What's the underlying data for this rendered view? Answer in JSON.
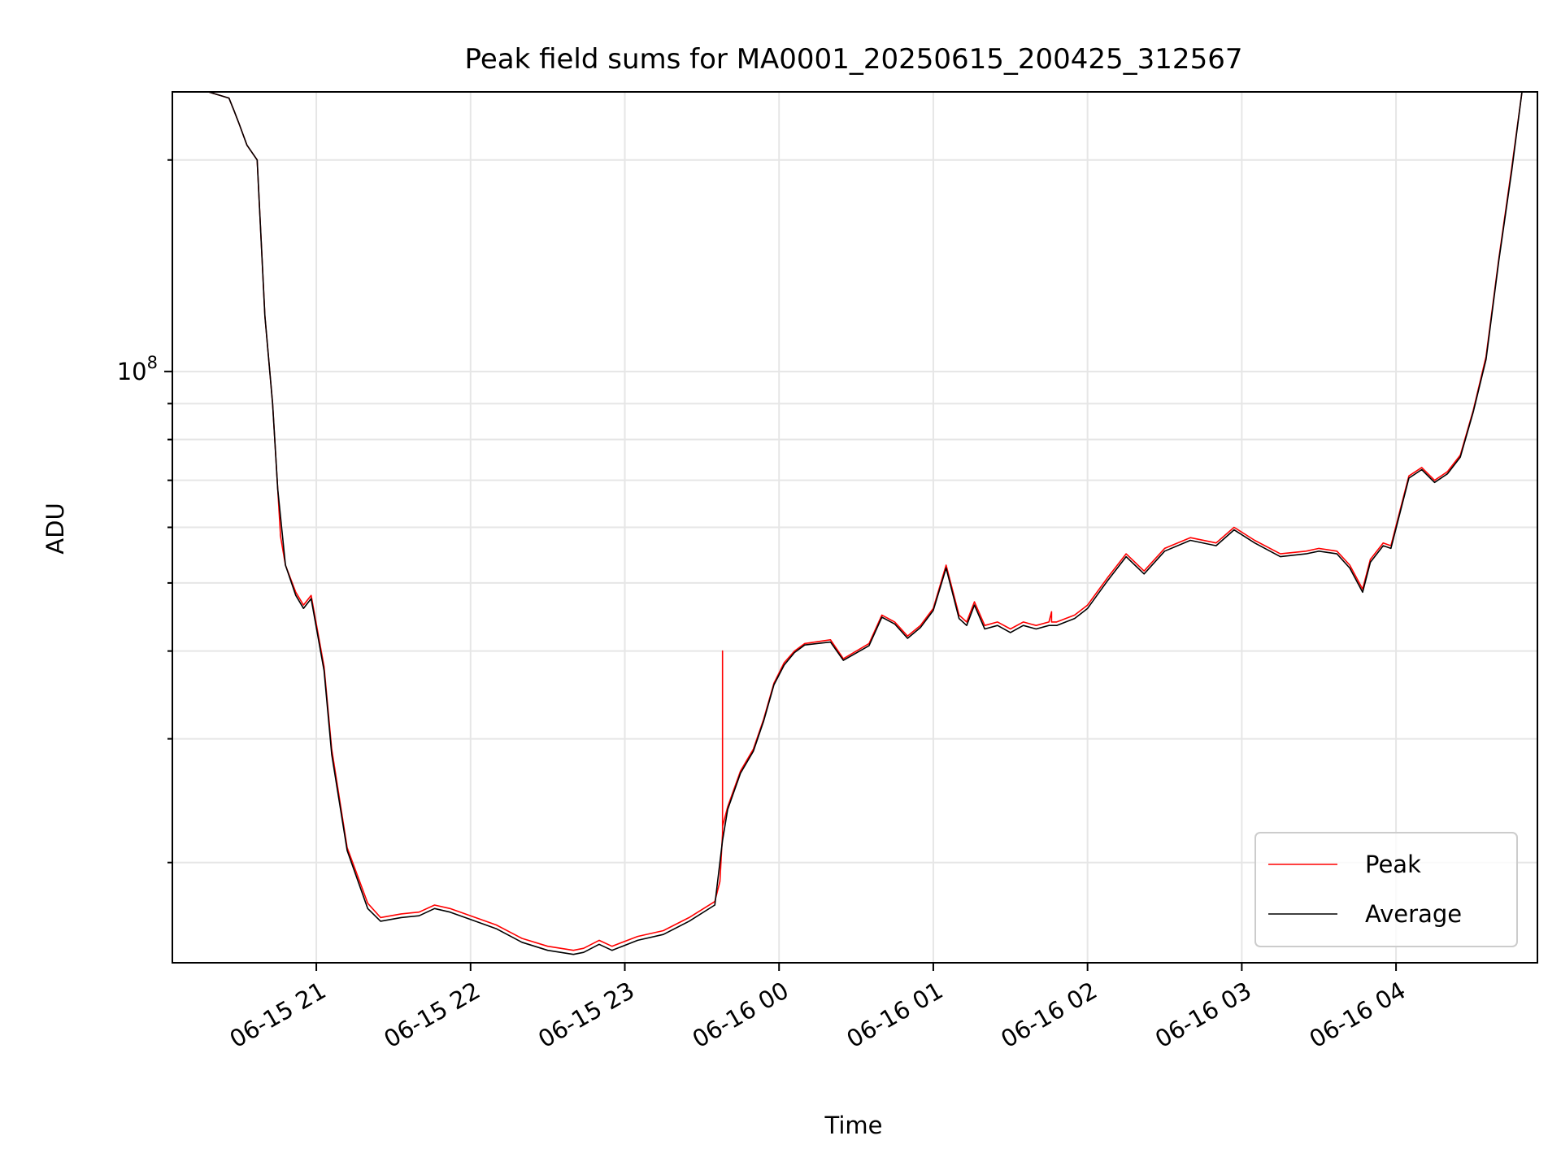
{
  "chart_data": {
    "type": "line",
    "title": "Peak field sums for MA0001_20250615_200425_312567",
    "xlabel": "Time",
    "ylabel": "ADU",
    "yscale": "log",
    "grid": true,
    "legend_position": "lower right",
    "xlim": [
      "2025-06-15 20:04",
      "2025-06-16 04:55"
    ],
    "ylim": [
      14400000,
      250000000
    ],
    "x_ticks": [
      {
        "value": "2025-06-15 21:00",
        "label": "06-15 21"
      },
      {
        "value": "2025-06-15 22:00",
        "label": "06-15 22"
      },
      {
        "value": "2025-06-15 23:00",
        "label": "06-15 23"
      },
      {
        "value": "2025-06-16 00:00",
        "label": "06-16 00"
      },
      {
        "value": "2025-06-16 01:00",
        "label": "06-16 01"
      },
      {
        "value": "2025-06-16 02:00",
        "label": "06-16 02"
      },
      {
        "value": "2025-06-16 03:00",
        "label": "06-16 03"
      },
      {
        "value": "2025-06-16 04:00",
        "label": "06-16 04"
      }
    ],
    "y_ticks": [
      {
        "value": 100000000,
        "base": "10",
        "exponent": "8"
      }
    ],
    "series": [
      {
        "name": "Peak",
        "color": "#ff0000",
        "x": [
          "2025-06-15 20:04",
          "2025-06-15 20:18",
          "2025-06-15 20:26",
          "2025-06-15 20:28",
          "2025-06-15 20:30",
          "2025-06-15 20:33",
          "2025-06-15 20:37",
          "2025-06-15 20:40",
          "2025-06-15 20:43",
          "2025-06-15 20:45",
          "2025-06-15 20:46",
          "2025-06-15 20:46",
          "2025-06-15 20:48",
          "2025-06-15 20:52",
          "2025-06-15 20:55",
          "2025-06-15 20:58",
          "2025-06-15 21:03",
          "2025-06-15 21:06",
          "2025-06-15 21:12",
          "2025-06-15 21:20",
          "2025-06-15 21:25",
          "2025-06-15 21:33",
          "2025-06-15 21:40",
          "2025-06-15 21:46",
          "2025-06-15 21:52",
          "2025-06-15 22:00",
          "2025-06-15 22:10",
          "2025-06-15 22:20",
          "2025-06-15 22:30",
          "2025-06-15 22:40",
          "2025-06-15 22:44",
          "2025-06-15 22:50",
          "2025-06-15 22:55",
          "2025-06-15 23:05",
          "2025-06-15 23:15",
          "2025-06-15 23:25",
          "2025-06-15 23:35",
          "2025-06-15 23:37",
          "2025-06-15 23:38",
          "2025-06-15 23:38",
          "2025-06-15 23:38",
          "2025-06-15 23:40",
          "2025-06-15 23:45",
          "2025-06-15 23:50",
          "2025-06-15 23:54",
          "2025-06-15 23:58",
          "2025-06-16 00:02",
          "2025-06-16 00:06",
          "2025-06-16 00:10",
          "2025-06-16 00:20",
          "2025-06-16 00:25",
          "2025-06-16 00:35",
          "2025-06-16 00:40",
          "2025-06-16 00:45",
          "2025-06-16 00:50",
          "2025-06-16 00:55",
          "2025-06-16 01:00",
          "2025-06-16 01:05",
          "2025-06-16 01:10",
          "2025-06-16 01:13",
          "2025-06-16 01:16",
          "2025-06-16 01:20",
          "2025-06-16 01:25",
          "2025-06-16 01:30",
          "2025-06-16 01:35",
          "2025-06-16 01:40",
          "2025-06-16 01:45",
          "2025-06-16 01:46",
          "2025-06-16 01:46",
          "2025-06-16 01:48",
          "2025-06-16 01:55",
          "2025-06-16 02:00",
          "2025-06-16 02:08",
          "2025-06-16 02:15",
          "2025-06-16 02:22",
          "2025-06-16 02:30",
          "2025-06-16 02:40",
          "2025-06-16 02:50",
          "2025-06-16 02:57",
          "2025-06-16 03:05",
          "2025-06-16 03:15",
          "2025-06-16 03:25",
          "2025-06-16 03:30",
          "2025-06-16 03:37",
          "2025-06-16 03:42",
          "2025-06-16 03:47",
          "2025-06-16 03:50",
          "2025-06-16 03:55",
          "2025-06-16 03:58",
          "2025-06-16 04:05",
          "2025-06-16 04:10",
          "2025-06-16 04:15",
          "2025-06-16 04:20",
          "2025-06-16 04:25",
          "2025-06-16 04:30",
          "2025-06-16 04:35",
          "2025-06-16 04:40",
          "2025-06-16 04:45",
          "2025-06-16 04:49",
          "2025-06-16 04:55"
        ],
        "values": [
          250000000,
          250000000,
          245000000,
          235000000,
          225000000,
          210000000,
          200000000,
          120000000,
          90000000,
          68000000,
          59000000,
          58500000,
          53000000,
          48500000,
          46500000,
          48000000,
          38000000,
          29000000,
          21000000,
          17500000,
          16700000,
          16900000,
          17000000,
          17400000,
          17200000,
          16800000,
          16300000,
          15600000,
          15200000,
          15000000,
          15100000,
          15500000,
          15200000,
          15700000,
          16000000,
          16700000,
          17600000,
          18800000,
          22000000,
          40000000,
          22500000,
          24000000,
          27000000,
          29000000,
          32000000,
          36000000,
          38500000,
          40000000,
          41000000,
          41500000,
          39000000,
          41000000,
          45000000,
          44000000,
          42000000,
          43500000,
          46000000,
          53000000,
          45000000,
          44000000,
          47000000,
          43500000,
          44000000,
          43000000,
          44000000,
          43500000,
          44000000,
          45500000,
          44000000,
          44000000,
          45000000,
          46500000,
          51000000,
          55000000,
          52000000,
          56000000,
          58000000,
          57000000,
          60000000,
          57500000,
          55000000,
          55500000,
          56000000,
          55500000,
          53000000,
          49000000,
          54000000,
          57000000,
          56500000,
          71000000,
          73000000,
          70000000,
          72000000,
          76000000,
          88000000,
          105000000,
          145000000,
          195000000,
          250000000,
          250000000
        ]
      },
      {
        "name": "Average",
        "color": "#000000",
        "x": [
          "2025-06-15 20:04",
          "2025-06-15 20:18",
          "2025-06-15 20:26",
          "2025-06-15 20:28",
          "2025-06-15 20:30",
          "2025-06-15 20:33",
          "2025-06-15 20:37",
          "2025-06-15 20:40",
          "2025-06-15 20:43",
          "2025-06-15 20:45",
          "2025-06-15 20:48",
          "2025-06-15 20:52",
          "2025-06-15 20:55",
          "2025-06-15 20:58",
          "2025-06-15 21:03",
          "2025-06-15 21:06",
          "2025-06-15 21:12",
          "2025-06-15 21:20",
          "2025-06-15 21:25",
          "2025-06-15 21:33",
          "2025-06-15 21:40",
          "2025-06-15 21:46",
          "2025-06-15 21:52",
          "2025-06-15 22:00",
          "2025-06-15 22:10",
          "2025-06-15 22:20",
          "2025-06-15 22:30",
          "2025-06-15 22:40",
          "2025-06-15 22:44",
          "2025-06-15 22:50",
          "2025-06-15 22:55",
          "2025-06-15 23:05",
          "2025-06-15 23:15",
          "2025-06-15 23:25",
          "2025-06-15 23:35",
          "2025-06-15 23:38",
          "2025-06-15 23:40",
          "2025-06-15 23:45",
          "2025-06-15 23:50",
          "2025-06-15 23:54",
          "2025-06-15 23:58",
          "2025-06-16 00:02",
          "2025-06-16 00:06",
          "2025-06-16 00:10",
          "2025-06-16 00:20",
          "2025-06-16 00:25",
          "2025-06-16 00:35",
          "2025-06-16 00:40",
          "2025-06-16 00:45",
          "2025-06-16 00:50",
          "2025-06-16 00:55",
          "2025-06-16 01:00",
          "2025-06-16 01:05",
          "2025-06-16 01:10",
          "2025-06-16 01:13",
          "2025-06-16 01:16",
          "2025-06-16 01:20",
          "2025-06-16 01:25",
          "2025-06-16 01:30",
          "2025-06-16 01:35",
          "2025-06-16 01:40",
          "2025-06-16 01:45",
          "2025-06-16 01:48",
          "2025-06-16 01:55",
          "2025-06-16 02:00",
          "2025-06-16 02:08",
          "2025-06-16 02:15",
          "2025-06-16 02:22",
          "2025-06-16 02:30",
          "2025-06-16 02:40",
          "2025-06-16 02:50",
          "2025-06-16 02:57",
          "2025-06-16 03:05",
          "2025-06-16 03:15",
          "2025-06-16 03:25",
          "2025-06-16 03:30",
          "2025-06-16 03:37",
          "2025-06-16 03:42",
          "2025-06-16 03:47",
          "2025-06-16 03:50",
          "2025-06-16 03:55",
          "2025-06-16 03:58",
          "2025-06-16 04:05",
          "2025-06-16 04:10",
          "2025-06-16 04:15",
          "2025-06-16 04:20",
          "2025-06-16 04:25",
          "2025-06-16 04:30",
          "2025-06-16 04:35",
          "2025-06-16 04:40",
          "2025-06-16 04:45",
          "2025-06-16 04:49",
          "2025-06-16 04:55"
        ],
        "values": [
          250000000,
          250000000,
          245000000,
          235000000,
          225000000,
          210000000,
          200000000,
          120000000,
          90000000,
          68000000,
          53000000,
          48000000,
          46000000,
          47500000,
          37500000,
          28500000,
          20800000,
          17200000,
          16500000,
          16700000,
          16800000,
          17200000,
          17000000,
          16600000,
          16100000,
          15400000,
          15000000,
          14800000,
          14900000,
          15300000,
          15000000,
          15500000,
          15800000,
          16500000,
          17400000,
          21500000,
          23800000,
          26800000,
          28800000,
          31800000,
          35800000,
          38200000,
          39800000,
          40800000,
          41200000,
          38800000,
          40700000,
          44700000,
          43700000,
          41700000,
          43200000,
          45700000,
          52500000,
          44500000,
          43500000,
          46500000,
          43000000,
          43500000,
          42500000,
          43500000,
          43000000,
          43500000,
          43500000,
          44500000,
          46000000,
          50500000,
          54500000,
          51500000,
          55500000,
          57500000,
          56500000,
          59500000,
          57000000,
          54500000,
          55000000,
          55500000,
          55000000,
          52500000,
          48500000,
          53500000,
          56500000,
          56000000,
          70500000,
          72500000,
          69500000,
          71500000,
          75500000,
          87500000,
          104000000,
          144000000,
          193000000,
          250000000,
          250000000
        ]
      }
    ]
  }
}
